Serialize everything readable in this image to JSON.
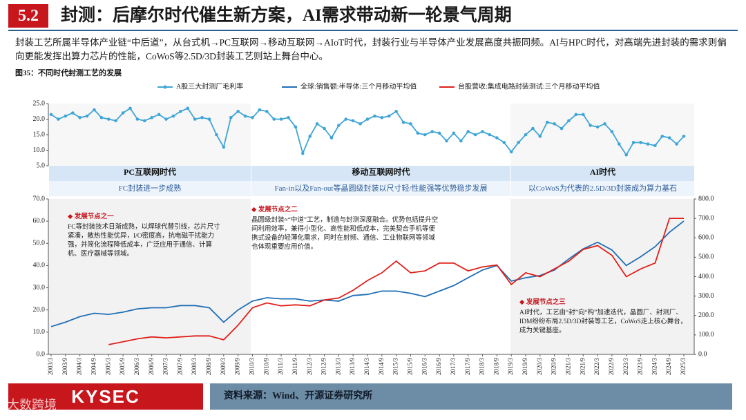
{
  "header": {
    "number": "5.2",
    "title": "封测：后摩尔时代催生新方案，AI需求带动新一轮景气周期"
  },
  "intro": "封装工艺所属半导体产业链“中后道”，从台式机→PC互联网→移动互联网→AIoT时代，封装行业与半导体产业发展高度共振同频。AI与HPC时代，对高端先进封装的需求则偏向更能发挥出算力芯片的性能，CoWoS等2.5D/3D封装工艺则站上舞台中心。",
  "figure_caption": "图35：不同时代封测工艺的发展",
  "eras": [
    {
      "title": "PC互联网时代",
      "subtitle": "FC封装进一步成熟"
    },
    {
      "title": "移动互联网时代",
      "subtitle": "Fan-in以及Fan-out等晶圆级封装以尺寸轻/性能强等优势稳步发展"
    },
    {
      "title": "AI时代",
      "subtitle": "以CoWoS为代表的2.5D/3D封装成为算力基石"
    }
  ],
  "annotations": [
    {
      "title": "发展节点之一",
      "text": "FC等封装技术日渐成熟，以焊球代替引线，芯片尺寸紧凑，散热性能优异，I/O密度高，抗电磁干扰能力强，并简化流程降低成本，广泛应用于通信、计算机、医疗器械等领域。"
    },
    {
      "title": "发展节点之二",
      "text": "晶圆级封装≈“中道”工艺，制造与封测深度融合。优势包括提升空间利用效率，兼得小型化、高性能和低成本，完美契合手机等便携式设备的轻薄化需求，同时在射频、通信、工业物联网等领域也体现重要应用价值。"
    },
    {
      "title": "发展节点之三",
      "text": "AI时代，工艺由“封”向“构”加速迭代，晶圆厂、封测厂、IDM纷纷布局2.5D/3D封装等工艺，CoWoS走上核心舞台，成为关键基座。"
    }
  ],
  "source": "资料来源：Wind、开源证券研究所",
  "logo": "KYSEC",
  "watermark": "大数跨境",
  "chart_data": [
    {
      "type": "line",
      "markers": true,
      "grid": false,
      "ylim": [
        5,
        25
      ],
      "yticks": [
        {
          "value": 5,
          "label": "5.0"
        },
        {
          "value": 10,
          "label": "10.0"
        },
        {
          "value": 15,
          "label": "15.0"
        },
        {
          "value": 20,
          "label": "20.0"
        },
        {
          "value": 25,
          "label": "25.0"
        }
      ],
      "series": [
        {
          "name": "A股三大封测厂毛利率",
          "color": "#3ea5d6",
          "values": [
            21.5,
            20.0,
            21.0,
            22.0,
            20.5,
            21.0,
            23.0,
            20.5,
            20.0,
            19.5,
            22.0,
            23.5,
            20.0,
            19.5,
            20.5,
            21.5,
            20.0,
            21.0,
            22.5,
            23.5,
            20.0,
            20.5,
            20.0,
            15.0,
            11.0,
            20.5,
            22.5,
            21.0,
            20.5,
            23.0,
            22.5,
            20.0,
            20.0,
            20.5,
            17.5,
            9.0,
            14.5,
            18.5,
            17.0,
            14.0,
            18.0,
            20.0,
            19.5,
            18.5,
            20.0,
            21.0,
            20.5,
            21.0,
            22.5,
            19.0,
            18.5,
            15.5,
            15.0,
            16.0,
            15.5,
            13.0,
            15.5,
            13.0,
            16.0,
            15.0,
            16.0,
            15.0,
            14.0,
            12.5,
            9.5,
            12.5,
            15.0,
            17.0,
            14.5,
            19.0,
            18.5,
            17.0,
            19.5,
            21.5,
            21.5,
            18.0,
            17.5,
            18.5,
            16.0,
            12.0,
            8.5,
            12.5,
            12.5,
            12.0,
            11.5,
            14.5,
            14.0,
            12.0,
            14.5
          ]
        }
      ]
    },
    {
      "type": "line",
      "markers": false,
      "grid": false,
      "categories": [
        "2003/3",
        "2003/9",
        "2004/3",
        "2004/9",
        "2005/3",
        "2005/9",
        "2006/3",
        "2006/9",
        "2007/3",
        "2007/9",
        "2008/3",
        "2008/9",
        "2009/3",
        "2009/9",
        "2010/3",
        "2010/9",
        "2011/3",
        "2011/9",
        "2012/3",
        "2012/9",
        "2013/3",
        "2013/9",
        "2014/3",
        "2014/9",
        "2015/3",
        "2015/9",
        "2016/3",
        "2016/9",
        "2017/3",
        "2017/9",
        "2018/3",
        "2018/9",
        "2019/3",
        "2019/9",
        "2020/3",
        "2020/9",
        "2021/3",
        "2021/9",
        "2022/3",
        "2022/9",
        "2023/3",
        "2023/9",
        "2024/3",
        "2024/9",
        "2025/3"
      ],
      "ylim": [
        0,
        70
      ],
      "yticks": [
        {
          "value": 0,
          "label": "0.0"
        },
        {
          "value": 10,
          "label": "10.0"
        },
        {
          "value": 20,
          "label": "20.0"
        },
        {
          "value": 30,
          "label": "30.0"
        },
        {
          "value": 40,
          "label": "40.0"
        },
        {
          "value": 50,
          "label": "50.0"
        },
        {
          "value": 60,
          "label": "60.0"
        },
        {
          "value": 70,
          "label": "70.0"
        }
      ],
      "y2lim": [
        0,
        800
      ],
      "y2ticks": [
        {
          "value": 0,
          "label": "0.0"
        },
        {
          "value": 100,
          "label": "100.0"
        },
        {
          "value": 200,
          "label": "200.0"
        },
        {
          "value": 300,
          "label": "300.0"
        },
        {
          "value": 400,
          "label": "400.0"
        },
        {
          "value": 500,
          "label": "500.0"
        },
        {
          "value": 600,
          "label": "600.0"
        },
        {
          "value": 700,
          "label": "700.0"
        },
        {
          "value": 800,
          "label": "800.0"
        }
      ],
      "series": [
        {
          "name": "全球:销售额:半导体:三个月移动平均值",
          "color": "#1f6fb5",
          "axis": "y",
          "values": [
            12.5,
            14.5,
            17,
            18.5,
            18,
            19,
            20.5,
            21,
            21,
            22,
            22,
            21,
            14.5,
            20,
            24,
            25.5,
            25,
            25,
            24,
            24.5,
            24,
            26.5,
            27,
            28.5,
            28.5,
            27.5,
            26,
            28.5,
            31,
            34.5,
            38,
            40,
            33,
            34.5,
            35.5,
            38,
            43,
            47.5,
            50.5,
            47,
            40,
            44,
            48.5,
            55,
            60
          ]
        },
        {
          "name": "台股营收:集成电路封装测试:三个月移动平均值",
          "color": "#e0201b",
          "axis": "y2",
          "values": [
            null,
            null,
            null,
            null,
            50,
            65,
            80,
            90,
            85,
            90,
            95,
            95,
            75,
            150,
            240,
            265,
            250,
            255,
            250,
            280,
            290,
            330,
            380,
            420,
            480,
            420,
            430,
            470,
            470,
            430,
            450,
            460,
            360,
            420,
            400,
            440,
            480,
            540,
            560,
            510,
            400,
            440,
            470,
            700,
            700
          ]
        }
      ]
    }
  ]
}
